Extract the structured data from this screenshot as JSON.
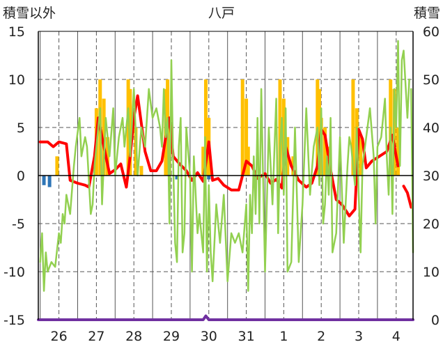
{
  "chart_data": {
    "type": "line",
    "title": "八戸",
    "ylabel_left": "積雪以外",
    "ylabel_right": "積雪",
    "x_categories": [
      "26",
      "27",
      "28",
      "29",
      "30",
      "31",
      "1",
      "2",
      "3",
      "4"
    ],
    "xlim": [
      25.45,
      35.45
    ],
    "ylim_left": [
      -15,
      15
    ],
    "ylim_right": [
      0,
      60
    ],
    "yticks_left": [
      "15",
      "10",
      "5",
      "0",
      "-5",
      "-10",
      "-15"
    ],
    "yticks_right": [
      "60",
      "50",
      "40",
      "30",
      "20",
      "10",
      "0"
    ],
    "grid": true,
    "colors": {
      "precip_bars": "#ffc000",
      "snowfall_bars": "#2e75b6",
      "temperature": "#ff0000",
      "wind": "#92d050",
      "snow_depth": "#7030a0",
      "axis": "#000000",
      "grid": "#555555"
    },
    "series": [
      {
        "kind": "bar",
        "color": "#ffc000",
        "x": [
          25.95,
          27.0,
          27.1,
          27.2,
          27.3,
          27.85,
          27.9,
          28.05,
          28.2,
          28.85,
          28.9,
          28.95,
          29.85,
          29.92,
          30.0,
          30.9,
          31.0,
          31.05,
          31.9,
          32.0,
          32.1,
          32.25,
          32.9,
          32.95,
          33.0,
          33.1,
          33.2,
          33.85,
          33.95,
          34.05,
          34.85,
          34.95,
          35.05
        ],
        "values": [
          2,
          7,
          10,
          8,
          4,
          10,
          9,
          5,
          1,
          9,
          10,
          5,
          3,
          10,
          6,
          10,
          8,
          3,
          10,
          8,
          4,
          2,
          10,
          9,
          6,
          5,
          3,
          10,
          7,
          4,
          10,
          9,
          5
        ]
      },
      {
        "kind": "bar",
        "color": "#2e75b6",
        "x": [
          25.6,
          25.75,
          29.15,
          30.0
        ],
        "values": [
          -1,
          -1.2,
          -0.4,
          -0.4
        ]
      },
      {
        "kind": "line",
        "color": "#ff0000",
        "x": [
          25.5,
          25.7,
          25.85,
          26.0,
          26.2,
          26.3,
          26.5,
          26.7,
          26.8,
          26.95,
          27.05,
          27.2,
          27.35,
          27.5,
          27.65,
          27.8,
          27.9,
          28.0,
          28.1,
          28.3,
          28.45,
          28.6,
          28.75,
          28.85,
          28.95,
          29.05,
          29.2,
          29.4,
          29.55,
          29.7,
          29.85,
          30.0,
          30.1,
          30.25,
          30.4,
          30.6,
          30.8,
          31.0,
          31.15,
          31.3,
          31.5,
          31.65,
          31.8,
          31.95,
          32.05,
          32.2,
          32.4,
          32.6,
          32.75,
          32.9,
          33.0,
          33.1,
          33.25,
          33.4,
          33.55,
          33.75,
          33.9,
          34.0,
          34.1,
          34.2,
          34.35,
          34.55,
          34.75,
          34.9,
          35.0,
          35.05
        ],
        "values": [
          3.5,
          3.5,
          3.0,
          3.5,
          3.3,
          -0.5,
          -0.8,
          -1.0,
          -1.2,
          2.0,
          6.0,
          3.0,
          0.2,
          0.6,
          1.2,
          -1.2,
          2.0,
          6.0,
          8.3,
          2.5,
          0.5,
          0.5,
          1.5,
          4.0,
          6.0,
          2.0,
          1.3,
          0.5,
          -0.5,
          0.3,
          -0.6,
          3.5,
          -0.5,
          -0.3,
          -1.0,
          -1.5,
          -1.5,
          1.5,
          1.0,
          -0.3,
          0.2,
          -0.8,
          -0.4,
          -1.3,
          3.0,
          1.0,
          -0.5,
          -1.2,
          -0.8,
          1.0,
          4.8,
          4.2,
          0.6,
          -2.5,
          -3.0,
          -4.2,
          -3.5,
          4.8,
          3.8,
          0.8,
          1.5,
          2.0,
          2.5,
          4.2,
          2.0,
          1.0
        ],
        "x2": [
          35.2,
          35.3,
          35.4
        ],
        "values2": [
          -1.1,
          -1.8,
          -3.3
        ]
      },
      {
        "kind": "line",
        "color": "#92d050",
        "x": [
          25.5,
          25.55,
          25.6,
          25.65,
          25.7,
          25.8,
          25.9,
          26.0,
          26.05,
          26.1,
          26.15,
          26.2,
          26.3,
          26.4,
          26.45,
          26.55,
          26.6,
          26.7,
          26.75,
          26.85,
          26.9,
          26.95,
          27.0,
          27.05,
          27.1,
          27.15,
          27.25,
          27.35,
          27.45,
          27.5,
          27.6,
          27.7,
          27.75,
          27.85,
          27.9,
          28.0,
          28.1,
          28.2,
          28.3,
          28.4,
          28.5,
          28.6,
          28.7,
          28.75,
          28.8,
          28.85,
          28.9,
          28.95,
          29.0,
          29.05,
          29.1,
          29.15,
          29.2,
          29.25,
          29.3,
          29.35,
          29.4,
          29.5,
          29.55,
          29.6,
          29.7,
          29.75,
          29.85,
          29.9,
          29.95,
          30.0,
          30.05,
          30.1,
          30.2,
          30.3,
          30.4,
          30.5,
          30.6,
          30.7,
          30.8,
          30.9,
          31.0,
          31.05,
          31.1,
          31.15,
          31.2,
          31.25,
          31.3,
          31.35,
          31.4,
          31.5,
          31.6,
          31.7,
          31.8,
          31.85,
          31.9,
          31.95,
          32.0,
          32.05,
          32.1,
          32.2,
          32.3,
          32.4,
          32.5,
          32.6,
          32.7,
          32.8,
          32.9,
          32.95,
          33.0,
          33.05,
          33.1,
          33.15,
          33.2,
          33.25,
          33.3,
          33.4,
          33.5,
          33.6,
          33.7,
          33.75,
          33.8,
          33.9,
          33.95,
          34.0,
          34.05,
          34.1,
          34.2,
          34.3,
          34.4,
          34.45,
          34.5,
          34.6,
          34.7,
          34.75,
          34.8,
          34.85,
          34.9,
          34.95,
          35.0,
          35.05,
          35.1,
          35.15,
          35.2,
          35.3,
          35.35
        ],
        "values": [
          -9,
          -6,
          -12,
          -8,
          -10,
          -9,
          -9.5,
          -6,
          -7,
          -4,
          -5,
          -2,
          -4,
          1,
          3,
          6,
          2,
          4,
          3,
          -4,
          -3,
          1,
          3,
          5,
          7,
          -3,
          6,
          2,
          7,
          0,
          4,
          6,
          3,
          7,
          2,
          9,
          0,
          5,
          3,
          9,
          6,
          7,
          5,
          3,
          9,
          4,
          6,
          -5,
          12,
          1,
          -7,
          -9,
          3,
          6,
          -8,
          -6,
          5,
          0,
          -10,
          2,
          -6,
          -4,
          -8,
          4,
          -10,
          -1,
          -8,
          -11,
          -3,
          -7,
          -2,
          -11,
          -6,
          -7,
          -6,
          -8,
          -3,
          -12,
          -2,
          -6,
          2,
          -4,
          6,
          -5,
          9,
          -10,
          5,
          -3,
          8,
          -6,
          3,
          6,
          -2,
          7,
          -10,
          -9,
          5,
          -9,
          -3,
          7,
          -2,
          3,
          5,
          -1,
          7,
          -5,
          -3,
          2,
          -2,
          6,
          -8,
          -6,
          4,
          -7,
          1,
          4,
          3,
          -1,
          5,
          -2,
          -8,
          1,
          4,
          7,
          2,
          -5,
          3,
          4,
          8,
          2,
          -2,
          5,
          -4,
          9,
          5,
          14,
          1,
          12,
          13,
          6,
          10
        ],
        "x2": [
          35.4,
          35.45
        ],
        "values2": [
          9,
          -8
        ]
      },
      {
        "kind": "line",
        "axis": "right",
        "color": "#7030a0",
        "x": [
          25.45,
          29.85,
          29.92,
          30.0,
          35.45
        ],
        "values": [
          0,
          0,
          0.8,
          0,
          0
        ]
      }
    ]
  }
}
